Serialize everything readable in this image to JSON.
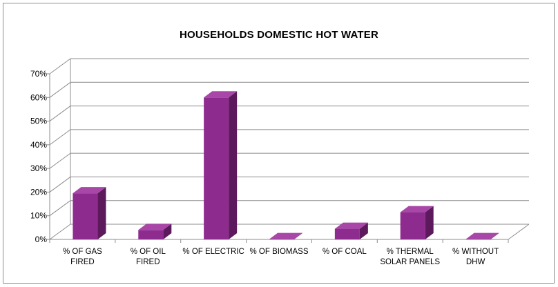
{
  "chart_data": {
    "type": "bar",
    "title": "HOUSEHOLDS DOMESTIC HOT WATER",
    "xlabel": "",
    "ylabel": "",
    "categories": [
      [
        "% OF GAS",
        "FIRED"
      ],
      [
        "% OF OIL",
        "FIRED"
      ],
      [
        "% OF ELECTRIC"
      ],
      [
        "% OF BIOMASS"
      ],
      [
        "% OF COAL"
      ],
      [
        "% THERMAL",
        "SOLAR PANELS"
      ],
      [
        "% WITHOUT",
        "DHW"
      ]
    ],
    "values": [
      19.5,
      4,
      60,
      0.1,
      4.5,
      11.5,
      0.1
    ],
    "ylim": [
      0,
      70
    ],
    "yticks": [
      "0%",
      "10%",
      "20%",
      "30%",
      "40%",
      "50%",
      "60%",
      "70%"
    ],
    "grid": true,
    "legend": "none",
    "style": "3d",
    "colors": {
      "bar_front": "#8e2b8f",
      "bar_top": "#a847a8",
      "bar_side": "#5c1a5d",
      "grid": "#8c8c8c"
    }
  }
}
